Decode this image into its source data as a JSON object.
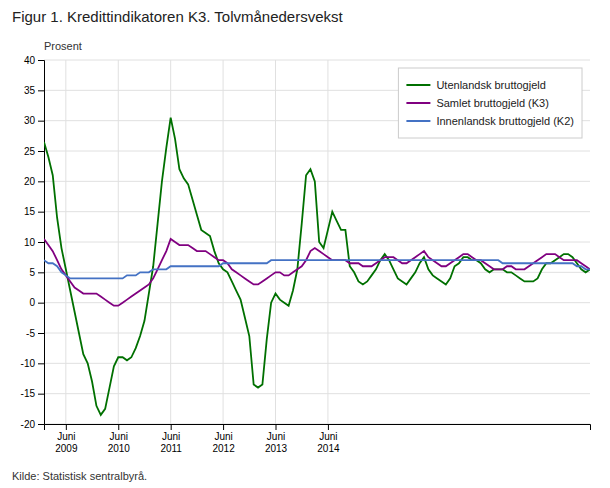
{
  "chart_data": {
    "type": "line",
    "title": "Figur 1. Kredittindikatoren K3. Tolvmånedersvekst",
    "ylabel": "Prosent",
    "source": "Kilde: Statistisk sentralbyrå.",
    "ylim": [
      -20,
      40
    ],
    "yticks": [
      -20,
      -15,
      -10,
      -5,
      0,
      5,
      10,
      15,
      20,
      25,
      30,
      35,
      40
    ],
    "grid": true,
    "legend": "upper right",
    "categories": [
      null,
      null,
      null,
      null,
      null,
      "Juni\n2009",
      null,
      null,
      null,
      null,
      null,
      null,
      null,
      null,
      null,
      null,
      null,
      "Juni\n2010",
      null,
      null,
      null,
      null,
      null,
      null,
      null,
      null,
      null,
      null,
      null,
      "Juni\n2011",
      null,
      null,
      null,
      null,
      null,
      null,
      null,
      null,
      null,
      null,
      null,
      "Juni\n2012",
      null,
      null,
      null,
      null,
      null,
      null,
      null,
      null,
      null,
      null,
      null,
      "Juni\n2013",
      null,
      null,
      null,
      null,
      null,
      null,
      null,
      null,
      null,
      null,
      null,
      "Juni\n2014",
      null,
      null,
      null,
      null,
      null,
      null,
      null,
      null,
      null,
      null,
      null,
      null,
      null,
      null,
      null,
      null,
      null,
      null,
      null,
      null,
      null,
      null,
      null,
      null,
      null,
      null,
      null,
      null,
      null,
      null,
      null,
      null,
      null,
      null,
      null,
      null,
      null,
      null,
      null,
      null,
      null,
      null,
      null,
      null,
      null,
      null,
      null,
      null,
      null,
      null,
      null,
      null,
      null,
      null,
      null,
      null,
      null,
      null,
      null,
      null
    ],
    "series": [
      {
        "name": "Utenlandsk bruttogjeld",
        "color": "#007000",
        "values": [
          26.5,
          24.0,
          21.0,
          14.0,
          9.0,
          5.5,
          2.0,
          -1.5,
          -5.0,
          -8.5,
          -10.0,
          -13.0,
          -17.0,
          -18.5,
          -17.5,
          -14.0,
          -10.5,
          -9.0,
          -9.0,
          -9.5,
          -9.0,
          -7.5,
          -5.5,
          -3.0,
          1.5,
          6.0,
          13.0,
          20.0,
          25.5,
          30.5,
          27.0,
          22.0,
          20.5,
          19.5,
          17.0,
          14.5,
          12.0,
          11.5,
          11.0,
          8.5,
          6.5,
          5.5,
          5.0,
          3.5,
          2.0,
          0.5,
          -2.5,
          -5.5,
          -13.5,
          -14.0,
          -13.5,
          -6.0,
          0.0,
          1.5,
          0.5,
          0.0,
          -0.5,
          2.0,
          5.5,
          13.0,
          21.0,
          22.0,
          20.0,
          10.0,
          9.0,
          12.0,
          15.0,
          13.5,
          12.0,
          12.0,
          6.0,
          5.0,
          3.5,
          3.0,
          3.5,
          4.5,
          5.5,
          7.0,
          8.0,
          7.0,
          5.5,
          4.0,
          3.5,
          3.0,
          4.0,
          5.0,
          6.5,
          7.5,
          5.5,
          4.5,
          4.0,
          3.5,
          3.0,
          4.0,
          6.0,
          6.5,
          7.5,
          7.5,
          7.0,
          7.0,
          6.5,
          5.5,
          5.0,
          5.5,
          5.5,
          5.5,
          5.0,
          5.0,
          4.5,
          4.0,
          3.5,
          3.5,
          3.5,
          4.0,
          5.5,
          6.5,
          6.5,
          7.0,
          7.5,
          8.0,
          8.0,
          7.5,
          6.5,
          5.5,
          5.0,
          5.5
        ]
      },
      {
        "name": "Samlet bruttogjeld (K3)",
        "color": "#800080",
        "values": [
          10.5,
          9.5,
          8.5,
          7.0,
          5.5,
          4.5,
          3.5,
          2.5,
          2.0,
          1.5,
          1.5,
          1.5,
          1.5,
          1.0,
          0.5,
          0.0,
          -0.5,
          -0.5,
          0.0,
          0.5,
          1.0,
          1.5,
          2.0,
          2.5,
          3.0,
          4.0,
          5.5,
          7.0,
          8.5,
          10.5,
          10.0,
          9.5,
          9.5,
          9.5,
          9.0,
          8.5,
          8.5,
          8.5,
          8.0,
          7.5,
          7.0,
          7.0,
          6.5,
          5.5,
          5.0,
          4.5,
          4.0,
          3.5,
          3.0,
          3.0,
          3.5,
          4.0,
          4.5,
          5.0,
          5.0,
          4.5,
          4.5,
          5.0,
          5.5,
          6.0,
          7.0,
          8.5,
          9.0,
          8.5,
          8.0,
          7.5,
          7.0,
          7.0,
          7.0,
          7.0,
          6.5,
          6.5,
          6.5,
          6.0,
          6.0,
          6.0,
          6.5,
          7.0,
          7.5,
          7.5,
          7.5,
          7.0,
          6.5,
          6.5,
          7.0,
          7.5,
          8.0,
          8.5,
          7.5,
          7.0,
          6.5,
          6.0,
          6.0,
          6.5,
          7.0,
          7.5,
          8.0,
          8.0,
          7.5,
          7.0,
          7.0,
          6.5,
          6.0,
          5.5,
          5.5,
          5.5,
          6.0,
          6.0,
          5.5,
          5.5,
          5.5,
          6.0,
          6.5,
          7.0,
          7.5,
          8.0,
          8.0,
          8.0,
          7.5,
          7.0,
          7.0,
          7.0,
          7.0,
          6.5,
          6.0,
          5.5
        ]
      },
      {
        "name": "Innenlandsk bruttogjeld (K2)",
        "color": "#4472C4",
        "values": [
          7.0,
          6.5,
          6.5,
          6.0,
          5.0,
          4.5,
          4.0,
          4.0,
          4.0,
          4.0,
          4.0,
          4.0,
          4.0,
          4.0,
          4.0,
          4.0,
          4.0,
          4.0,
          4.0,
          4.5,
          4.5,
          4.5,
          5.0,
          5.0,
          5.0,
          5.5,
          5.5,
          5.5,
          5.5,
          6.0,
          6.0,
          6.0,
          6.0,
          6.0,
          6.0,
          6.0,
          6.0,
          6.0,
          6.0,
          6.0,
          6.0,
          6.5,
          6.5,
          6.5,
          6.5,
          6.5,
          6.5,
          6.5,
          6.5,
          6.5,
          6.5,
          6.5,
          7.0,
          7.0,
          7.0,
          7.0,
          7.0,
          7.0,
          7.0,
          7.0,
          7.0,
          7.0,
          7.0,
          7.0,
          7.0,
          7.0,
          7.0,
          7.0,
          7.0,
          7.0,
          7.0,
          7.0,
          7.0,
          7.0,
          7.0,
          7.0,
          7.0,
          7.0,
          7.0,
          7.0,
          7.0,
          7.0,
          7.0,
          7.0,
          7.0,
          7.0,
          7.0,
          7.0,
          7.0,
          7.0,
          7.0,
          7.0,
          7.0,
          7.0,
          7.0,
          7.0,
          7.0,
          7.0,
          7.0,
          7.0,
          7.0,
          7.0,
          7.0,
          7.0,
          7.0,
          6.5,
          6.5,
          6.5,
          6.5,
          6.5,
          6.5,
          6.5,
          6.5,
          6.5,
          6.5,
          6.5,
          6.5,
          6.5,
          6.5,
          6.5,
          6.5,
          6.5,
          6.0,
          6.0,
          5.5,
          5.5
        ]
      }
    ]
  }
}
